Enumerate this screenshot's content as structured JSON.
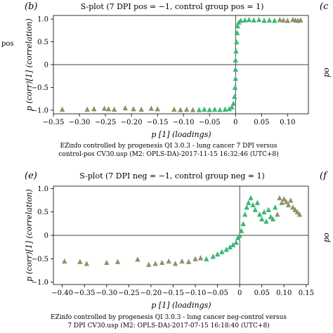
{
  "panels": [
    {
      "letter": "(b)",
      "title": "S-plot (7 DPI pos = −1, control group pos = 1)",
      "ylabel": "p (corr)[1] (correlation)",
      "xlabel": "p [1] (loadings)",
      "caption": [
        "EZinfo controlled by progenesis QI 3.0.3 - lung cancer 7 DPI versus",
        "control-pos CV30.usp (M2: OPLS-DA)-2017-11-15 16:32:46 (UTC+8)"
      ]
    },
    {
      "letter": "(e)",
      "title": "S-plot (7 DPI neg = −1, control group neg = 1)",
      "ylabel": "p (corr)[1] (correlation)",
      "xlabel": "p [1] (loadings)",
      "caption": [
        "EZinfo controlled by progenesis QI 3.0.3 - lung cancer neg-control versus",
        "7 DPI CV30.usp (M2: OPLS-DA)-2017-07-15 16:18:40 (UTC+8)"
      ]
    }
  ],
  "side_text": {
    "left_top": "pos",
    "right_top_letter": "(c",
    "right_top_ylabel": "po",
    "right_bottom_letter": "(f",
    "right_bottom_ylabel": "po"
  },
  "chart_data": [
    {
      "type": "scatter",
      "title": "S-plot (7 DPI pos = −1, control group pos = 1)",
      "xlabel": "p [1] (loadings)",
      "ylabel": "p (corr)[1] (correlation)",
      "xlim": [
        -0.35,
        0.14
      ],
      "ylim": [
        -1.08,
        1.08
      ],
      "xticks": [
        -0.35,
        -0.3,
        -0.25,
        -0.2,
        -0.15,
        -0.1,
        -0.05,
        0,
        0.05,
        0.1
      ],
      "xtick_labels": [
        "−0.35",
        "−0.30",
        "−0.25",
        "−0.20",
        "−0.15",
        "−0.10",
        "−0.05",
        "0",
        "0.05",
        "0.10"
      ],
      "yticks": [
        -1.0,
        -0.5,
        0,
        0.5,
        1.0
      ],
      "ytick_labels": [
        "−1.0",
        "−0.5",
        "0",
        "0.5",
        "1.0"
      ],
      "zero_lines": true,
      "colors": {
        "points": "#3cb878",
        "highlight": "#c8785a"
      },
      "series": [
        {
          "marker": "triangle",
          "points": [
            [
              -0.333,
              -0.98
            ],
            [
              -0.285,
              -0.98
            ],
            [
              -0.272,
              -0.97
            ],
            [
              -0.252,
              -0.96
            ],
            [
              -0.244,
              -0.97
            ],
            [
              -0.233,
              -0.98
            ],
            [
              -0.212,
              -0.95
            ],
            [
              -0.196,
              -0.97
            ],
            [
              -0.181,
              -0.98
            ],
            [
              -0.162,
              -0.96
            ],
            [
              -0.15,
              -0.97
            ],
            [
              -0.118,
              -0.98
            ],
            [
              -0.106,
              -0.99
            ],
            [
              -0.094,
              -0.98
            ],
            [
              -0.082,
              -0.99
            ],
            [
              -0.07,
              -0.99
            ],
            [
              -0.06,
              -0.98
            ],
            [
              -0.05,
              -0.99
            ],
            [
              -0.04,
              -0.98
            ],
            [
              -0.03,
              -0.99
            ],
            [
              -0.02,
              -0.98
            ],
            [
              -0.012,
              -0.97
            ],
            [
              -0.007,
              -0.93
            ],
            [
              -0.004,
              -0.85
            ],
            [
              -0.002,
              -0.7
            ],
            [
              -0.001,
              -0.5
            ],
            [
              0.0,
              -0.3
            ],
            [
              0.0,
              -0.1
            ],
            [
              0.0,
              0.1
            ],
            [
              0.001,
              0.3
            ],
            [
              0.002,
              0.5
            ],
            [
              0.003,
              0.7
            ],
            [
              0.004,
              0.85
            ],
            [
              0.006,
              0.93
            ],
            [
              0.01,
              0.97
            ],
            [
              0.018,
              0.98
            ],
            [
              0.026,
              0.99
            ],
            [
              0.035,
              0.98
            ],
            [
              0.045,
              0.99
            ],
            [
              0.055,
              0.97
            ],
            [
              0.065,
              0.98
            ],
            [
              0.075,
              0.97
            ],
            [
              0.085,
              0.99
            ],
            [
              0.092,
              0.98
            ],
            [
              0.1,
              0.97
            ],
            [
              0.11,
              0.99
            ],
            [
              0.115,
              0.98
            ],
            [
              0.12,
              0.97
            ],
            [
              0.125,
              0.98
            ]
          ]
        }
      ]
    },
    {
      "type": "scatter",
      "title": "S-plot (7 DPI neg = −1, control group neg = 1)",
      "xlabel": "p [1] (loadings)",
      "ylabel": "p (corr)[1] (correlation)",
      "xlim": [
        -0.42,
        0.155
      ],
      "ylim": [
        -1.05,
        1.05
      ],
      "xticks": [
        -0.4,
        -0.35,
        -0.3,
        -0.25,
        -0.2,
        -0.15,
        -0.1,
        -0.05,
        0,
        0.05,
        0.1,
        0.15
      ],
      "xtick_labels": [
        "−0.40",
        "−0.35",
        "−0.30",
        "−0.25",
        "−0.20",
        "−0.15",
        "−0.10",
        "−0.05",
        "0",
        "0.05",
        "0.10",
        "0.15"
      ],
      "yticks": [
        -1.0,
        -0.5,
        0,
        0.5,
        1.0
      ],
      "ytick_labels": [
        "−1.0",
        "−0.5",
        "0",
        "0.5",
        "1.0"
      ],
      "zero_lines": true,
      "colors": {
        "points": "#3cb878",
        "highlight": "#c8785a"
      },
      "series": [
        {
          "marker": "triangle",
          "points": [
            [
              -0.395,
              -0.55
            ],
            [
              -0.36,
              -0.56
            ],
            [
              -0.345,
              -0.6
            ],
            [
              -0.3,
              -0.58
            ],
            [
              -0.275,
              -0.56
            ],
            [
              -0.23,
              -0.51
            ],
            [
              -0.205,
              -0.62
            ],
            [
              -0.19,
              -0.6
            ],
            [
              -0.175,
              -0.58
            ],
            [
              -0.16,
              -0.55
            ],
            [
              -0.145,
              -0.6
            ],
            [
              -0.13,
              -0.55
            ],
            [
              -0.115,
              -0.56
            ],
            [
              -0.1,
              -0.5
            ],
            [
              -0.088,
              -0.48
            ],
            [
              -0.075,
              -0.5
            ],
            [
              -0.06,
              -0.45
            ],
            [
              -0.05,
              -0.4
            ],
            [
              -0.04,
              -0.35
            ],
            [
              -0.03,
              -0.3
            ],
            [
              -0.022,
              -0.25
            ],
            [
              -0.015,
              -0.2
            ],
            [
              -0.008,
              -0.15
            ],
            [
              -0.004,
              -0.05
            ],
            [
              0.0,
              0.0
            ],
            [
              0.004,
              0.1
            ],
            [
              0.008,
              0.25
            ],
            [
              0.012,
              0.45
            ],
            [
              0.016,
              0.6
            ],
            [
              0.02,
              0.7
            ],
            [
              0.025,
              0.8
            ],
            [
              0.03,
              0.65
            ],
            [
              0.035,
              0.55
            ],
            [
              0.04,
              0.7
            ],
            [
              0.045,
              0.45
            ],
            [
              0.05,
              0.35
            ],
            [
              0.055,
              0.5
            ],
            [
              0.06,
              0.3
            ],
            [
              0.065,
              0.55
            ],
            [
              0.07,
              0.4
            ],
            [
              0.075,
              0.35
            ],
            [
              0.08,
              0.6
            ],
            [
              0.085,
              0.45
            ],
            [
              0.09,
              0.8
            ],
            [
              0.095,
              0.7
            ],
            [
              0.1,
              0.78
            ],
            [
              0.105,
              0.72
            ],
            [
              0.11,
              0.65
            ],
            [
              0.115,
              0.75
            ],
            [
              0.12,
              0.6
            ],
            [
              0.125,
              0.55
            ],
            [
              0.13,
              0.5
            ],
            [
              0.135,
              0.45
            ]
          ]
        }
      ]
    }
  ]
}
